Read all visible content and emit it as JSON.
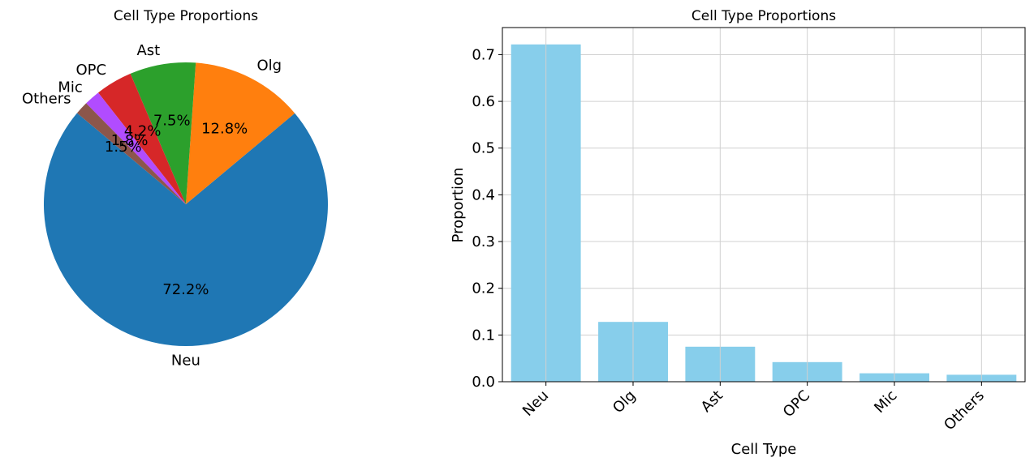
{
  "chart_data": [
    {
      "type": "pie",
      "title": "Cell Type Proportions",
      "labels": [
        "Neu",
        "Olg",
        "Ast",
        "OPC",
        "Mic",
        "Others"
      ],
      "values": [
        72.2,
        12.8,
        7.5,
        4.2,
        1.8,
        1.5
      ],
      "autopct_labels": [
        "72.2%",
        "12.8%",
        "7.5%",
        "4.2%",
        "1.8%",
        "1.5%"
      ],
      "colors": [
        "#1f77b4",
        "#ff7f0e",
        "#2ca02c",
        "#d62728",
        "#b14cff",
        "#8c564b"
      ],
      "start_angle_deg": 140,
      "direction": "counterclockwise"
    },
    {
      "type": "bar",
      "title": "Cell Type Proportions",
      "categories": [
        "Neu",
        "Olg",
        "Ast",
        "OPC",
        "Mic",
        "Others"
      ],
      "values": [
        0.722,
        0.128,
        0.075,
        0.042,
        0.018,
        0.015
      ],
      "xlabel": "Cell Type",
      "ylabel": "Proportion",
      "ylim": [
        0,
        0.758
      ],
      "yticks": [
        0.0,
        0.1,
        0.2,
        0.3,
        0.4,
        0.5,
        0.6,
        0.7
      ],
      "ytick_labels": [
        "0.0",
        "0.1",
        "0.2",
        "0.3",
        "0.4",
        "0.5",
        "0.6",
        "0.7"
      ],
      "bar_color": "#87ceeb",
      "grid": true,
      "xtick_rotation": 45
    }
  ]
}
